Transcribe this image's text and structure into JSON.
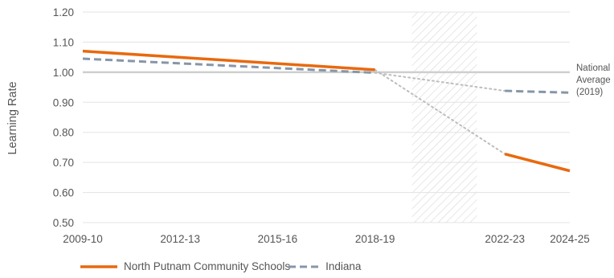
{
  "chart_data": {
    "type": "line",
    "xlabel": "",
    "ylabel": "Learning Rate",
    "x_ticks": [
      "2009-10",
      "2012-13",
      "2015-16",
      "2018-19",
      "2022-23",
      "2024-25"
    ],
    "ylim": [
      0.5,
      1.2
    ],
    "y_ticks": [
      "0.50",
      "0.60",
      "0.70",
      "0.80",
      "0.90",
      "1.00",
      "1.10",
      "1.20"
    ],
    "grid": true,
    "reference_line": {
      "y": 1.0,
      "label_lines": [
        "National",
        "Average",
        "(2019)"
      ]
    },
    "shaded_band": {
      "from": 2019.14,
      "to": 2021.14,
      "pattern": "diagonal-hatch"
    },
    "series": [
      {
        "name": "North Putnam Community Schools",
        "color": "#e8690f",
        "style": "solid",
        "points": [
          [
            2009,
            1.07
          ],
          [
            2018,
            1.008
          ]
        ],
        "projection_points": [
          [
            2018,
            1.008
          ],
          [
            2022,
            0.728
          ]
        ],
        "projection_points_after": [
          [
            2022,
            0.728
          ],
          [
            2024,
            0.672
          ]
        ]
      },
      {
        "name": "Indiana",
        "color": "#8796a8",
        "style": "dashed",
        "points": [
          [
            2009,
            1.045
          ],
          [
            2018,
            0.998
          ]
        ],
        "projection_points": [
          [
            2018,
            0.998
          ],
          [
            2022,
            0.938
          ]
        ],
        "projection_points_after": [
          [
            2022,
            0.938
          ],
          [
            2024,
            0.932
          ]
        ]
      }
    ],
    "legend_position": "bottom-left"
  },
  "colors": {
    "grid": "#e3e3e3",
    "reference": "#cfcfcf",
    "hatch": "#d7d7d7",
    "connector": "#bdbdbd"
  }
}
